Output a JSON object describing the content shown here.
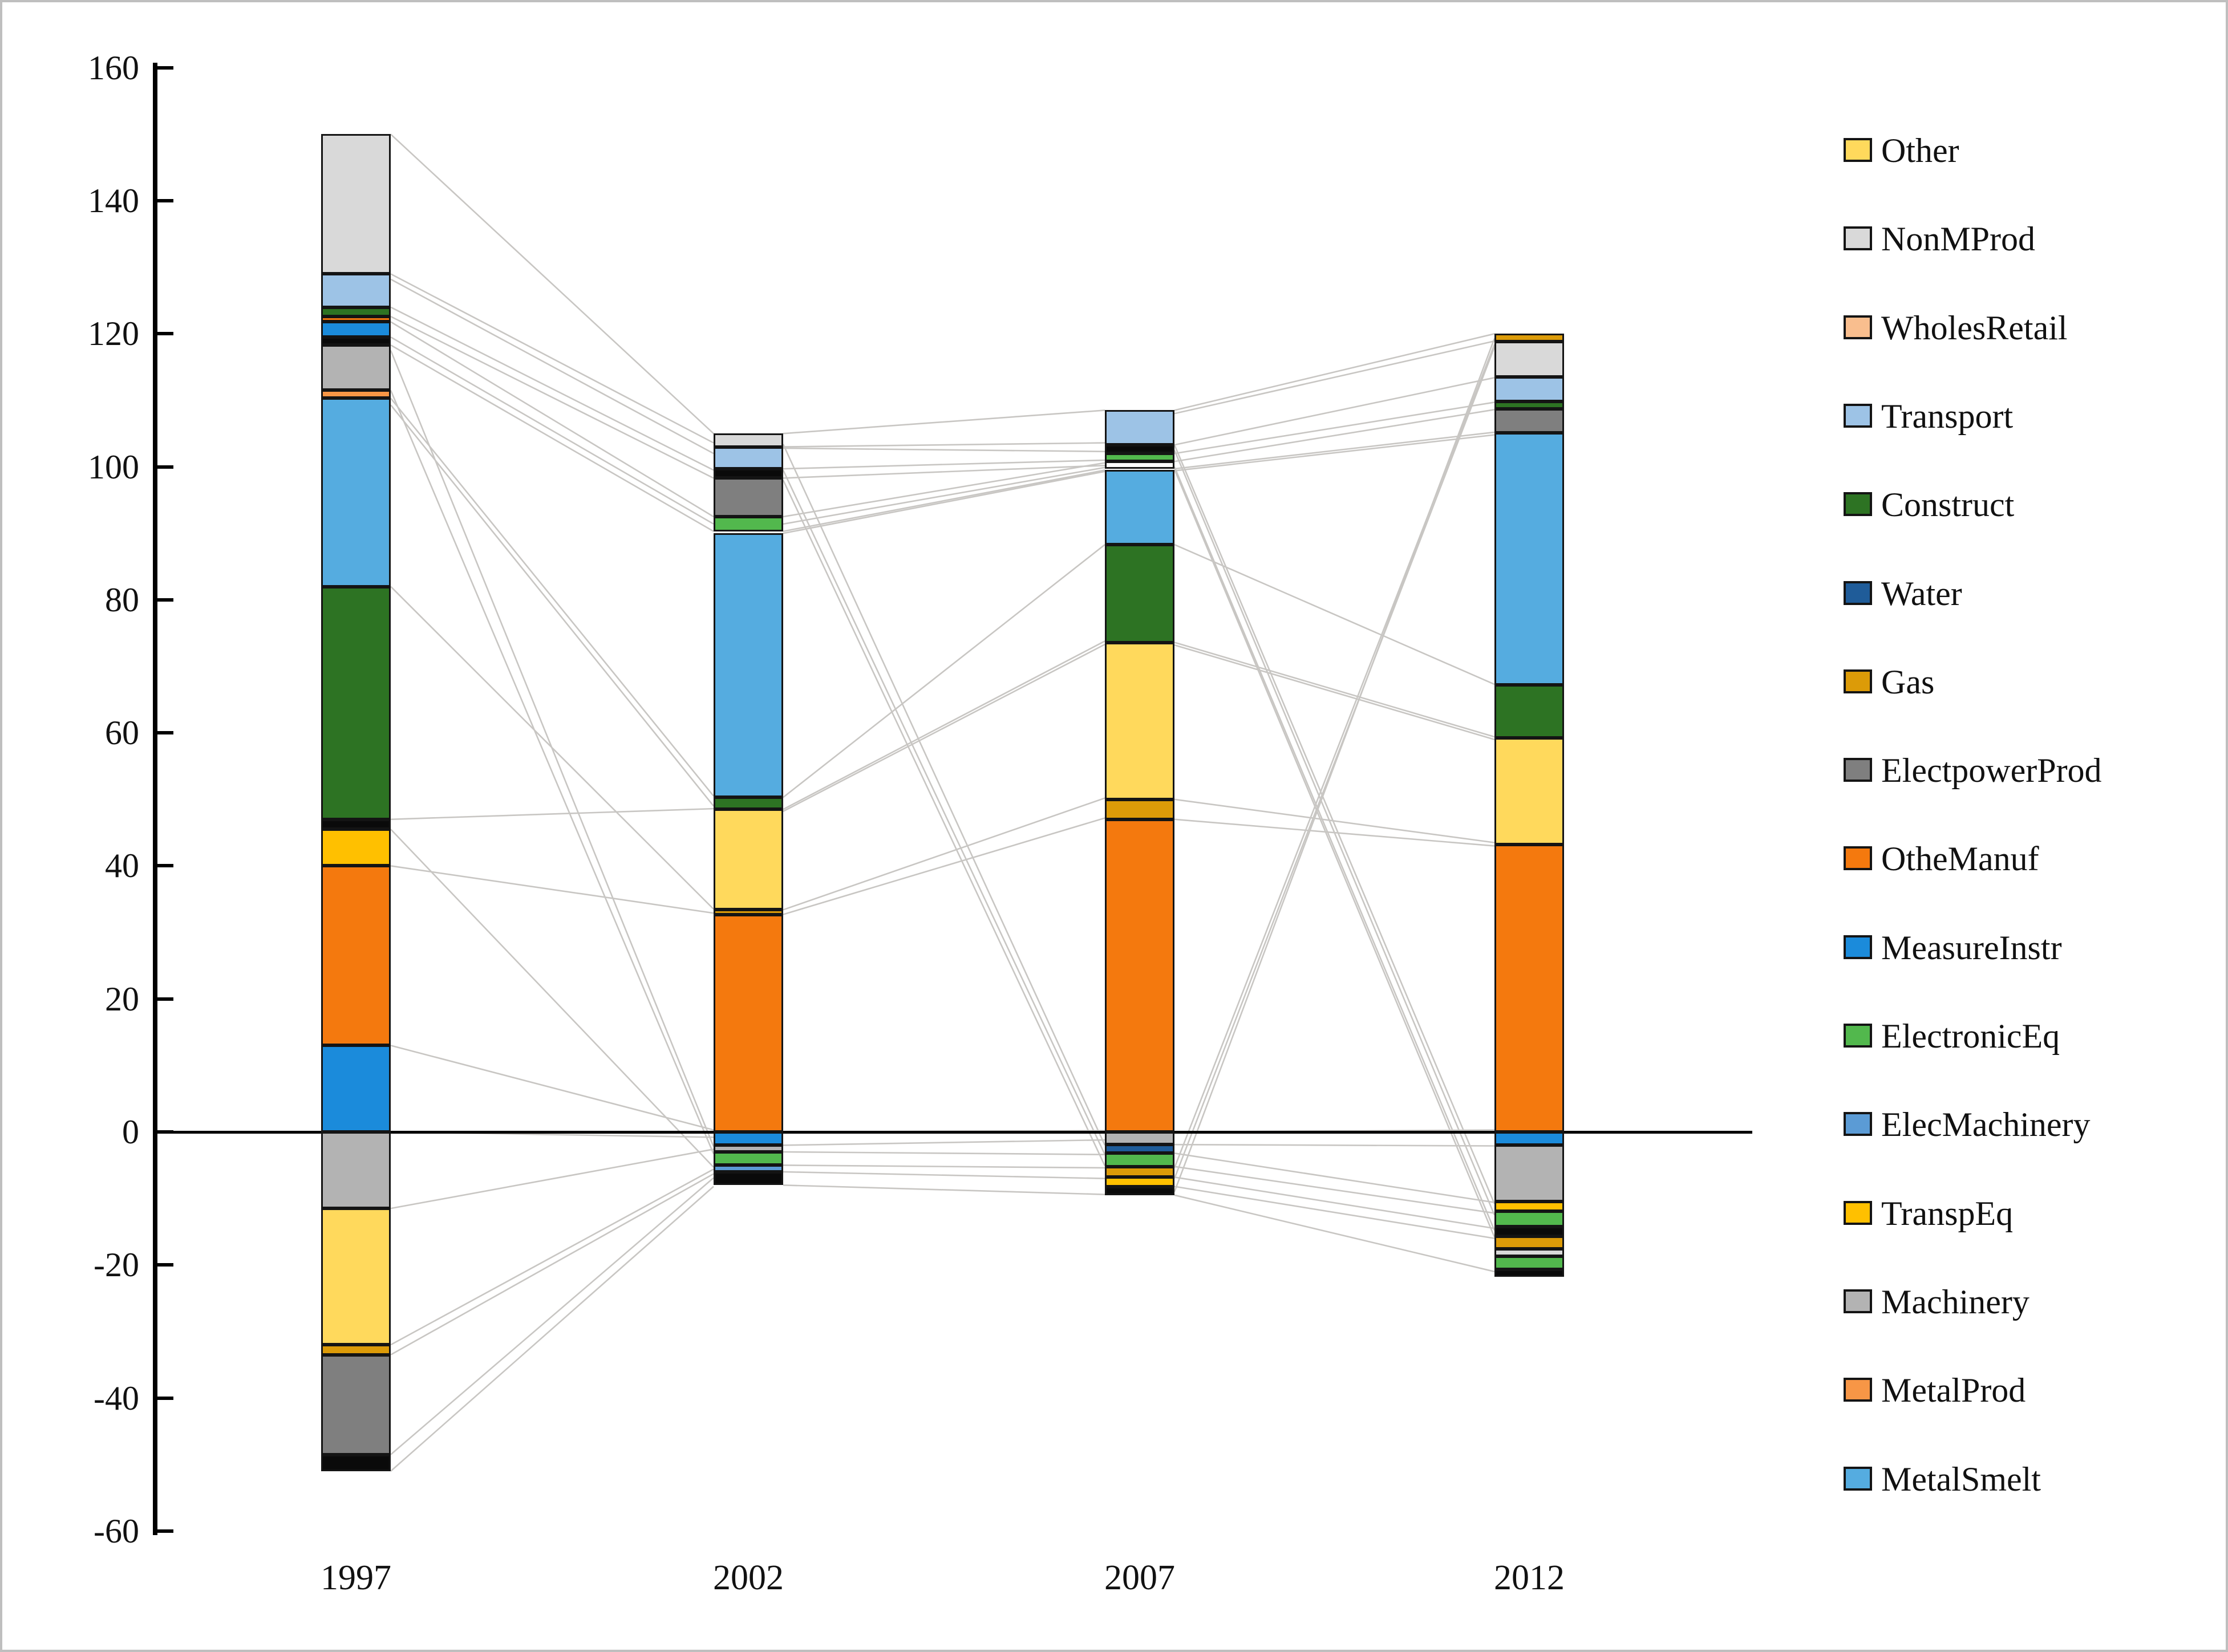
{
  "figure": {
    "background": "#ffffff",
    "border_color": "#bfbfbf",
    "connector_color": "#c8c6c3"
  },
  "palette": {
    "other": "#FFD95C",
    "nonmprod": "#D9D9D9",
    "wholesretail": "#F9BE8E",
    "transport": "#9DC3E6",
    "construct": "#2D7323",
    "water": "#1F5C99",
    "gas": "#DC9B08",
    "electpowerprod": "#7F7F7F",
    "othemanuf": "#F4790E",
    "measureinstr": "#1B8BDB",
    "electroniceq": "#52B84D",
    "elecmachinery": "#5B9BD5",
    "transpeq": "#FFC000",
    "machinery": "#B3B3B3",
    "metalprod": "#F79646",
    "metalsmelt": "#55ACE0",
    "black": "#0A0A0A",
    "white": "#FCFCFC"
  },
  "legend": [
    {
      "label": "Other",
      "key": "other"
    },
    {
      "label": "NonMProd",
      "key": "nonmprod"
    },
    {
      "label": "WholesRetail",
      "key": "wholesretail"
    },
    {
      "label": "Transport",
      "key": "transport"
    },
    {
      "label": "Construct",
      "key": "construct"
    },
    {
      "label": "Water",
      "key": "water"
    },
    {
      "label": "Gas",
      "key": "gas"
    },
    {
      "label": "ElectpowerProd",
      "key": "electpowerprod"
    },
    {
      "label": "OtheManuf",
      "key": "othemanuf"
    },
    {
      "label": "MeasureInstr",
      "key": "measureinstr"
    },
    {
      "label": "ElectronicEq",
      "key": "electroniceq"
    },
    {
      "label": "ElecMachinery",
      "key": "elecmachinery"
    },
    {
      "label": "TranspEq",
      "key": "transpeq"
    },
    {
      "label": "Machinery",
      "key": "machinery"
    },
    {
      "label": "MetalProd",
      "key": "metalprod"
    },
    {
      "label": "MetalSmelt",
      "key": "metalsmelt"
    }
  ],
  "chart_data": {
    "type": "bar",
    "stacked": true,
    "title": "",
    "xlabel": "",
    "ylabel": "",
    "grid": false,
    "legend_position": "right",
    "ylim": [
      -60,
      160
    ],
    "yticks": [
      160,
      140,
      120,
      100,
      80,
      60,
      40,
      20,
      0,
      -20,
      -40,
      -60
    ],
    "categories": [
      "1997",
      "2002",
      "2007",
      "2012"
    ],
    "bars": [
      {
        "year": "1997",
        "total_top": 150,
        "total_bottom": -51,
        "segments": [
          {
            "name": "NonMProd",
            "key": "nonmprod",
            "from": 150,
            "to": 129
          },
          {
            "name": "Transport",
            "key": "transport",
            "from": 129,
            "to": 124
          },
          {
            "name": "Construct-thin",
            "key": "construct",
            "from": 124,
            "to": 122.6
          },
          {
            "name": "OtheManuf-thin",
            "key": "othemanuf",
            "from": 122.6,
            "to": 121.8
          },
          {
            "name": "MeasureInstr",
            "key": "measureinstr",
            "from": 121.8,
            "to": 119.5
          },
          {
            "name": "Water",
            "key": "black",
            "from": 119.5,
            "to": 118.3
          },
          {
            "name": "Machinery",
            "key": "machinery",
            "from": 118.3,
            "to": 111.5
          },
          {
            "name": "MetalProd",
            "key": "metalprod",
            "from": 111.5,
            "to": 110.3
          },
          {
            "name": "MetalSmelt",
            "key": "metalsmelt",
            "from": 110.3,
            "to": 82
          },
          {
            "name": "Construct",
            "key": "construct",
            "from": 82,
            "to": 47
          },
          {
            "name": "Water-thin",
            "key": "black",
            "from": 47,
            "to": 45.5
          },
          {
            "name": "TranspEq",
            "key": "transpeq",
            "from": 45.5,
            "to": 40
          },
          {
            "name": "OtheManuf",
            "key": "othemanuf",
            "from": 40,
            "to": 13
          },
          {
            "name": "MeasureInstr-lower",
            "key": "measureinstr",
            "from": 13,
            "to": 0
          },
          {
            "name": "Machinery-neg",
            "key": "machinery",
            "from": 0,
            "to": -11.5
          },
          {
            "name": "Other-neg",
            "key": "other",
            "from": -11.5,
            "to": -32
          },
          {
            "name": "Gas-neg",
            "key": "gas",
            "from": -32,
            "to": -33.5
          },
          {
            "name": "ElectpowerProd-neg",
            "key": "electpowerprod",
            "from": -33.5,
            "to": -48.5
          },
          {
            "name": "black-cap",
            "key": "black",
            "from": -48.5,
            "to": -51
          }
        ]
      },
      {
        "year": "2002",
        "total_top": 105,
        "total_bottom": -8,
        "segments": [
          {
            "name": "NonMProd",
            "key": "nonmprod",
            "from": 105,
            "to": 103
          },
          {
            "name": "Transport",
            "key": "transport",
            "from": 103,
            "to": 99.7
          },
          {
            "name": "Water",
            "key": "black",
            "from": 99.7,
            "to": 98.3
          },
          {
            "name": "ElectpowerProd",
            "key": "electpowerprod",
            "from": 98.3,
            "to": 92.5
          },
          {
            "name": "ElectronicEq",
            "key": "electroniceq",
            "from": 92.5,
            "to": 90.3
          },
          {
            "name": "MetalSmelt",
            "key": "metalsmelt",
            "from": 90,
            "to": 50.3
          },
          {
            "name": "Construct",
            "key": "construct",
            "from": 50.3,
            "to": 48.5
          },
          {
            "name": "Other",
            "key": "other",
            "from": 48.5,
            "to": 33.4
          },
          {
            "name": "Gas",
            "key": "gas",
            "from": 33.4,
            "to": 32.7
          },
          {
            "name": "OtheManuf",
            "key": "othemanuf",
            "from": 32.7,
            "to": 0
          },
          {
            "name": "MeasureInstr-neg",
            "key": "measureinstr",
            "from": 0,
            "to": -2
          },
          {
            "name": "Machinery-neg",
            "key": "machinery",
            "from": -2,
            "to": -3
          },
          {
            "name": "ElectronicEq-neg",
            "key": "electroniceq",
            "from": -3,
            "to": -5
          },
          {
            "name": "ElecMachinery-neg",
            "key": "elecmachinery",
            "from": -5,
            "to": -6
          },
          {
            "name": "black-cap",
            "key": "black",
            "from": -6,
            "to": -8
          }
        ]
      },
      {
        "year": "2007",
        "total_top": 108.5,
        "total_bottom": -9.5,
        "segments": [
          {
            "name": "Transport",
            "key": "transport",
            "from": 108.5,
            "to": 103.3
          },
          {
            "name": "Water",
            "key": "black",
            "from": 103.3,
            "to": 102
          },
          {
            "name": "ElectronicEq",
            "key": "electroniceq",
            "from": 102,
            "to": 100.8
          },
          {
            "name": "NonMProd-thin",
            "key": "white",
            "from": 100.8,
            "to": 99.7
          },
          {
            "name": "MetalSmelt",
            "key": "metalsmelt",
            "from": 99.5,
            "to": 88.3
          },
          {
            "name": "Construct",
            "key": "construct",
            "from": 88.3,
            "to": 73.6
          },
          {
            "name": "Other",
            "key": "other",
            "from": 73.6,
            "to": 50
          },
          {
            "name": "Gas",
            "key": "gas",
            "from": 50,
            "to": 47
          },
          {
            "name": "OtheManuf",
            "key": "othemanuf",
            "from": 47,
            "to": 0
          },
          {
            "name": "Machinery-neg",
            "key": "machinery",
            "from": 0,
            "to": -1.9
          },
          {
            "name": "Water-neg",
            "key": "water",
            "from": -1.9,
            "to": -3.2
          },
          {
            "name": "ElectronicEq-neg",
            "key": "electroniceq",
            "from": -3.2,
            "to": -5.2
          },
          {
            "name": "Gas-neg",
            "key": "gas",
            "from": -5.2,
            "to": -6.8
          },
          {
            "name": "TranspEq-neg",
            "key": "transpeq",
            "from": -6.8,
            "to": -8.2
          },
          {
            "name": "black-cap",
            "key": "black",
            "from": -8.2,
            "to": -9.5
          }
        ]
      },
      {
        "year": "2012",
        "total_top": 120,
        "total_bottom": -21.8,
        "segments": [
          {
            "name": "Gas-thin",
            "key": "gas",
            "from": 120,
            "to": 118.8
          },
          {
            "name": "NonMProd",
            "key": "nonmprod",
            "from": 118.8,
            "to": 113.5
          },
          {
            "name": "Transport",
            "key": "transport",
            "from": 113.5,
            "to": 109.8
          },
          {
            "name": "Construct-thin",
            "key": "construct",
            "from": 109.8,
            "to": 108.7
          },
          {
            "name": "ElectpowerProd",
            "key": "electpowerprod",
            "from": 108.7,
            "to": 105.1
          },
          {
            "name": "MetalSmelt",
            "key": "metalsmelt",
            "from": 105.1,
            "to": 67.2
          },
          {
            "name": "Construct",
            "key": "construct",
            "from": 67.2,
            "to": 59.2
          },
          {
            "name": "Other",
            "key": "other",
            "from": 59.2,
            "to": 43.2
          },
          {
            "name": "OtheManuf",
            "key": "othemanuf",
            "from": 43.2,
            "to": 0
          },
          {
            "name": "MeasureInstr-neg",
            "key": "measureinstr",
            "from": 0,
            "to": -2
          },
          {
            "name": "Machinery-neg",
            "key": "machinery",
            "from": -2,
            "to": -10.5
          },
          {
            "name": "TranspEq-neg",
            "key": "transpeq",
            "from": -10.5,
            "to": -11.9
          },
          {
            "name": "ElectronicEq-neg",
            "key": "electroniceq",
            "from": -11.9,
            "to": -14.2
          },
          {
            "name": "Water-neg",
            "key": "black",
            "from": -14.2,
            "to": -15.7
          },
          {
            "name": "Gas-neg",
            "key": "gas",
            "from": -15.7,
            "to": -17.6
          },
          {
            "name": "NonMProd-neg",
            "key": "nonmprod",
            "from": -17.6,
            "to": -18.7
          },
          {
            "name": "ElectronicEq-neg2",
            "key": "electroniceq",
            "from": -18.7,
            "to": -20.7
          },
          {
            "name": "black-cap",
            "key": "black",
            "from": -20.7,
            "to": -21.8
          }
        ]
      }
    ],
    "connectors": [
      [
        0,
        150,
        1,
        105
      ],
      [
        0,
        129,
        1,
        103.6
      ],
      [
        0,
        128.2,
        1,
        102
      ],
      [
        0,
        124,
        1,
        99.5
      ],
      [
        0,
        122.6,
        1,
        98.3
      ],
      [
        0,
        121.8,
        1,
        92.5
      ],
      [
        0,
        119.5,
        1,
        91.4
      ],
      [
        0,
        118.3,
        1,
        90.3
      ],
      [
        0,
        117.5,
        1,
        -2.2
      ],
      [
        0,
        111.5,
        1,
        -3.3
      ],
      [
        0,
        110.3,
        1,
        50.5
      ],
      [
        0,
        109.3,
        1,
        49
      ],
      [
        0,
        82,
        1,
        33.5
      ],
      [
        0,
        47,
        1,
        48.6
      ],
      [
        0,
        45.5,
        1,
        -5.3
      ],
      [
        0,
        40,
        1,
        32.9
      ],
      [
        0,
        13,
        1,
        0.3
      ],
      [
        0,
        0,
        1,
        -0.8
      ],
      [
        0,
        -11.5,
        1,
        -2.6
      ],
      [
        0,
        -32,
        1,
        -5.6
      ],
      [
        0,
        -33.5,
        1,
        -6.3
      ],
      [
        0,
        -48.5,
        1,
        -6.9
      ],
      [
        0,
        -51,
        1,
        -8.2
      ],
      [
        1,
        105,
        2,
        108.5
      ],
      [
        1,
        103,
        2,
        103.6
      ],
      [
        1,
        102.8,
        2,
        102.3
      ],
      [
        1,
        99.7,
        2,
        101
      ],
      [
        1,
        98.3,
        2,
        100.2
      ],
      [
        1,
        92.5,
        2,
        100.6
      ],
      [
        1,
        91.4,
        2,
        99.9
      ],
      [
        1,
        90.3,
        2,
        99.5
      ],
      [
        1,
        90,
        2,
        99.3
      ],
      [
        1,
        50.3,
        2,
        88.3
      ],
      [
        1,
        48.5,
        2,
        73.8
      ],
      [
        1,
        48.2,
        2,
        73.3
      ],
      [
        1,
        33.4,
        2,
        50.2
      ],
      [
        1,
        32.7,
        2,
        47.2
      ],
      [
        1,
        0,
        2,
        0.2
      ],
      [
        1,
        103.4,
        2,
        -2
      ],
      [
        1,
        99.5,
        2,
        -3.4
      ],
      [
        1,
        98,
        2,
        -5.1
      ],
      [
        1,
        -2,
        2,
        -1.2
      ],
      [
        1,
        -3,
        2,
        -3.4
      ],
      [
        1,
        -5,
        2,
        -5.4
      ],
      [
        1,
        -6,
        2,
        -7
      ],
      [
        1,
        -8,
        2,
        -9.4
      ],
      [
        2,
        108.5,
        3,
        120
      ],
      [
        2,
        108,
        3,
        118.9
      ],
      [
        2,
        103.3,
        3,
        113.4
      ],
      [
        2,
        102,
        3,
        109.7
      ],
      [
        2,
        100.8,
        3,
        108.6
      ],
      [
        2,
        99.7,
        3,
        105.2
      ],
      [
        2,
        99.4,
        3,
        104.8
      ],
      [
        2,
        88.3,
        3,
        67.3
      ],
      [
        2,
        73.6,
        3,
        59.4
      ],
      [
        2,
        73.2,
        3,
        59
      ],
      [
        2,
        50,
        3,
        43.5
      ],
      [
        2,
        47,
        3,
        43
      ],
      [
        2,
        0,
        3,
        0.3
      ],
      [
        2,
        -1.9,
        3,
        -2.1
      ],
      [
        2,
        -3.2,
        3,
        -10.6
      ],
      [
        2,
        -5.2,
        3,
        -12.2
      ],
      [
        2,
        -6.8,
        3,
        -14.5
      ],
      [
        2,
        -8.2,
        3,
        -16
      ],
      [
        2,
        -9.5,
        3,
        -21
      ],
      [
        2,
        103.3,
        3,
        -10.8
      ],
      [
        2,
        102.5,
        3,
        -12.5
      ],
      [
        2,
        100,
        3,
        -14.8
      ],
      [
        2,
        99.6,
        3,
        -15.8
      ],
      [
        2,
        -5.4,
        3,
        118.4
      ],
      [
        2,
        -7,
        3,
        118
      ],
      [
        2,
        -9,
        3,
        119.3
      ]
    ]
  }
}
